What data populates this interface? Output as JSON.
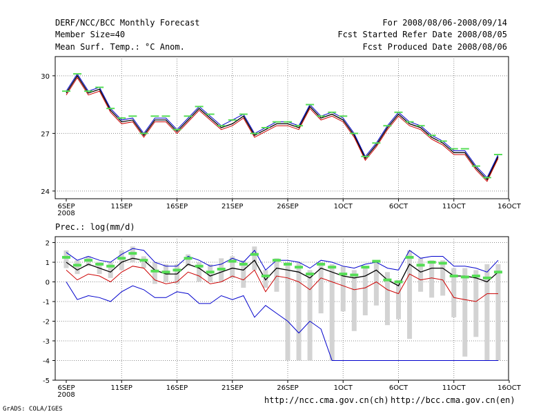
{
  "header": {
    "title": "DERF/NCC/BCC Monthly Forecast",
    "member_size": "Member Size=40",
    "variable": "Mean Surf. Temp.: °C Anom.",
    "period": "For 2008/08/06-2008/09/14",
    "start_ref": "Fcst Started Refer Date 2008/08/05",
    "produced": "Fcst Produced Date 2008/08/06"
  },
  "footer": {
    "url_ch": "http://ncc.cma.gov.cn(ch)",
    "url_en": "http://bcc.cma.gov.cn(en)",
    "credit": "GrADS: COLA/IGES"
  },
  "colors": {
    "obs_marker": "#55dd55",
    "upper": "#0000cc",
    "lower": "#cc0000",
    "mean": "#000000",
    "bar": "#d3d3d3"
  },
  "chart_data": [
    {
      "type": "line",
      "title": "Mean Surf. Temp.: °C Anom.",
      "x_tick_labels": [
        "6SEP",
        "11SEP",
        "16SEP",
        "21SEP",
        "26SEP",
        "1OCT",
        "6OCT",
        "11OCT",
        "16OCT"
      ],
      "x_year_label": "2008",
      "ylim": [
        23.6,
        31
      ],
      "y_ticks": [
        24,
        27,
        30
      ],
      "grid": true,
      "series": [
        {
          "name": "upper",
          "values": [
            29.2,
            30.1,
            29.2,
            29.4,
            28.3,
            27.7,
            27.8,
            27.0,
            27.8,
            27.8,
            27.2,
            27.8,
            28.4,
            27.9,
            27.4,
            27.7,
            28.0,
            27.0,
            27.3,
            27.6,
            27.6,
            27.4,
            28.5,
            27.9,
            28.1,
            27.8,
            27.0,
            25.8,
            26.5,
            27.4,
            28.1,
            27.6,
            27.4,
            26.9,
            26.6,
            26.1,
            26.1,
            25.3,
            24.7,
            25.9
          ]
        },
        {
          "name": "mean",
          "values": [
            29.1,
            30.0,
            29.1,
            29.3,
            28.2,
            27.6,
            27.7,
            26.9,
            27.7,
            27.7,
            27.1,
            27.7,
            28.3,
            27.8,
            27.3,
            27.5,
            27.9,
            26.9,
            27.2,
            27.5,
            27.5,
            27.3,
            28.4,
            27.8,
            28.0,
            27.7,
            26.9,
            25.7,
            26.4,
            27.3,
            28.0,
            27.5,
            27.3,
            26.8,
            26.5,
            26.0,
            26.0,
            25.2,
            24.6,
            25.8
          ]
        },
        {
          "name": "lower",
          "values": [
            29.0,
            29.9,
            29.0,
            29.2,
            28.1,
            27.5,
            27.6,
            26.8,
            27.6,
            27.6,
            27.0,
            27.6,
            28.2,
            27.7,
            27.2,
            27.4,
            27.8,
            26.8,
            27.1,
            27.4,
            27.4,
            27.2,
            28.3,
            27.7,
            27.9,
            27.6,
            26.8,
            25.6,
            26.3,
            27.2,
            27.9,
            27.4,
            27.2,
            26.7,
            26.4,
            25.9,
            25.9,
            25.1,
            24.5,
            25.7
          ]
        },
        {
          "name": "obs",
          "values": [
            29.2,
            30.1,
            29.2,
            29.4,
            28.3,
            27.8,
            27.9,
            27.0,
            27.9,
            27.9,
            27.2,
            27.9,
            28.4,
            28.0,
            27.4,
            27.7,
            28.0,
            27.0,
            27.3,
            27.6,
            27.6,
            27.4,
            28.5,
            27.9,
            28.1,
            27.9,
            27.0,
            25.8,
            26.5,
            27.4,
            28.1,
            27.6,
            27.4,
            26.9,
            26.6,
            26.2,
            26.2,
            25.3,
            24.7,
            25.9
          ]
        }
      ]
    },
    {
      "type": "line",
      "title": "Prec.: log(mm/d)",
      "x_tick_labels": [
        "6SEP",
        "11SEP",
        "16SEP",
        "21SEP",
        "26SEP",
        "1OCT",
        "6OCT",
        "11OCT",
        "16OCT"
      ],
      "x_year_label": "2008",
      "ylim": [
        -5,
        2.3
      ],
      "y_ticks": [
        -5,
        -4,
        -3,
        -2,
        -1,
        0,
        1,
        2
      ],
      "grid": true,
      "series": [
        {
          "name": "upper",
          "values": [
            1.5,
            1.1,
            1.3,
            1.1,
            1.0,
            1.4,
            1.7,
            1.6,
            1.0,
            0.8,
            0.8,
            1.3,
            1.1,
            0.8,
            0.9,
            1.2,
            1.0,
            1.6,
            0.6,
            1.1,
            1.1,
            1.0,
            0.7,
            1.1,
            1.0,
            0.8,
            0.7,
            0.9,
            1.0,
            0.7,
            0.6,
            1.6,
            1.2,
            1.3,
            1.3,
            0.8,
            0.8,
            0.7,
            0.5,
            1.1
          ]
        },
        {
          "name": "mean",
          "values": [
            1.0,
            0.6,
            0.9,
            0.7,
            0.5,
            1.0,
            1.2,
            1.1,
            0.6,
            0.4,
            0.4,
            0.9,
            0.7,
            0.3,
            0.5,
            0.7,
            0.6,
            1.1,
            0.1,
            0.7,
            0.6,
            0.5,
            0.2,
            0.7,
            0.5,
            0.3,
            0.2,
            0.3,
            0.6,
            0.1,
            -0.2,
            0.9,
            0.5,
            0.7,
            0.7,
            0.3,
            0.3,
            0.2,
            0.0,
            0.5
          ]
        },
        {
          "name": "lower",
          "values": [
            0.6,
            0.1,
            0.4,
            0.3,
            0.0,
            0.5,
            0.8,
            0.7,
            0.1,
            -0.1,
            0.0,
            0.5,
            0.3,
            -0.1,
            0.0,
            0.3,
            0.1,
            0.6,
            -0.5,
            0.3,
            0.2,
            0.0,
            -0.4,
            0.2,
            0.0,
            -0.2,
            -0.4,
            -0.3,
            0.0,
            -0.4,
            -0.6,
            0.4,
            0.1,
            0.2,
            0.1,
            -0.8,
            -0.9,
            -1.0,
            -0.6,
            -0.6
          ]
        },
        {
          "name": "min",
          "values": [
            0.0,
            -0.9,
            -0.7,
            -0.8,
            -1.0,
            -0.5,
            -0.2,
            -0.4,
            -0.8,
            -0.8,
            -0.5,
            -0.6,
            -1.1,
            -1.1,
            -0.7,
            -0.9,
            -0.7,
            -1.8,
            -1.2,
            -1.6,
            -2.0,
            -2.6,
            -2.0,
            -2.4,
            -4.0,
            -4.0,
            -4.0,
            -4.0,
            -4.0,
            -4.0,
            -4.0,
            -4.0,
            -4.0,
            -4.0,
            -4.0,
            -4.0,
            -4.0,
            -4.0,
            -4.0,
            -4.0
          ]
        },
        {
          "name": "obs",
          "values": [
            1.25,
            0.85,
            1.1,
            0.9,
            0.8,
            1.2,
            1.45,
            1.1,
            0.55,
            0.5,
            0.6,
            1.2,
            0.8,
            0.5,
            0.65,
            1.05,
            0.9,
            1.4,
            0.3,
            1.1,
            0.9,
            0.75,
            0.4,
            0.9,
            0.75,
            0.4,
            0.35,
            0.75,
            1.05,
            0.1,
            0.0,
            1.25,
            0.85,
            1.0,
            0.95,
            0.3,
            0.25,
            0.3,
            0.2,
            0.5
          ]
        }
      ],
      "bars": {
        "name": "spread",
        "low": [
          0.7,
          0.4,
          0.8,
          0.4,
          0.2,
          0.6,
          1.0,
          0.7,
          -0.1,
          0.0,
          -0.1,
          0.8,
          0.0,
          0.0,
          0.0,
          0.2,
          -0.3,
          0.6,
          -0.3,
          -0.5,
          -4.0,
          -4.0,
          -4.0,
          -1.6,
          -4.0,
          -1.5,
          -2.5,
          -1.7,
          -1.2,
          -2.2,
          -1.9,
          -2.9,
          -0.5,
          -0.8,
          -0.7,
          -1.8,
          -3.8,
          -2.8,
          -4.0,
          -4.0
        ],
        "high": [
          1.6,
          1.1,
          1.3,
          1.0,
          1.0,
          1.6,
          1.8,
          1.3,
          1.0,
          0.9,
          0.9,
          1.4,
          1.0,
          0.9,
          1.2,
          1.3,
          1.1,
          1.8,
          0.6,
          1.2,
          1.0,
          1.0,
          0.6,
          1.0,
          0.9,
          0.8,
          0.6,
          0.8,
          1.1,
          0.5,
          0.1,
          1.6,
          1.2,
          1.1,
          1.1,
          0.7,
          0.7,
          0.6,
          0.9,
          0.9
        ]
      }
    }
  ]
}
